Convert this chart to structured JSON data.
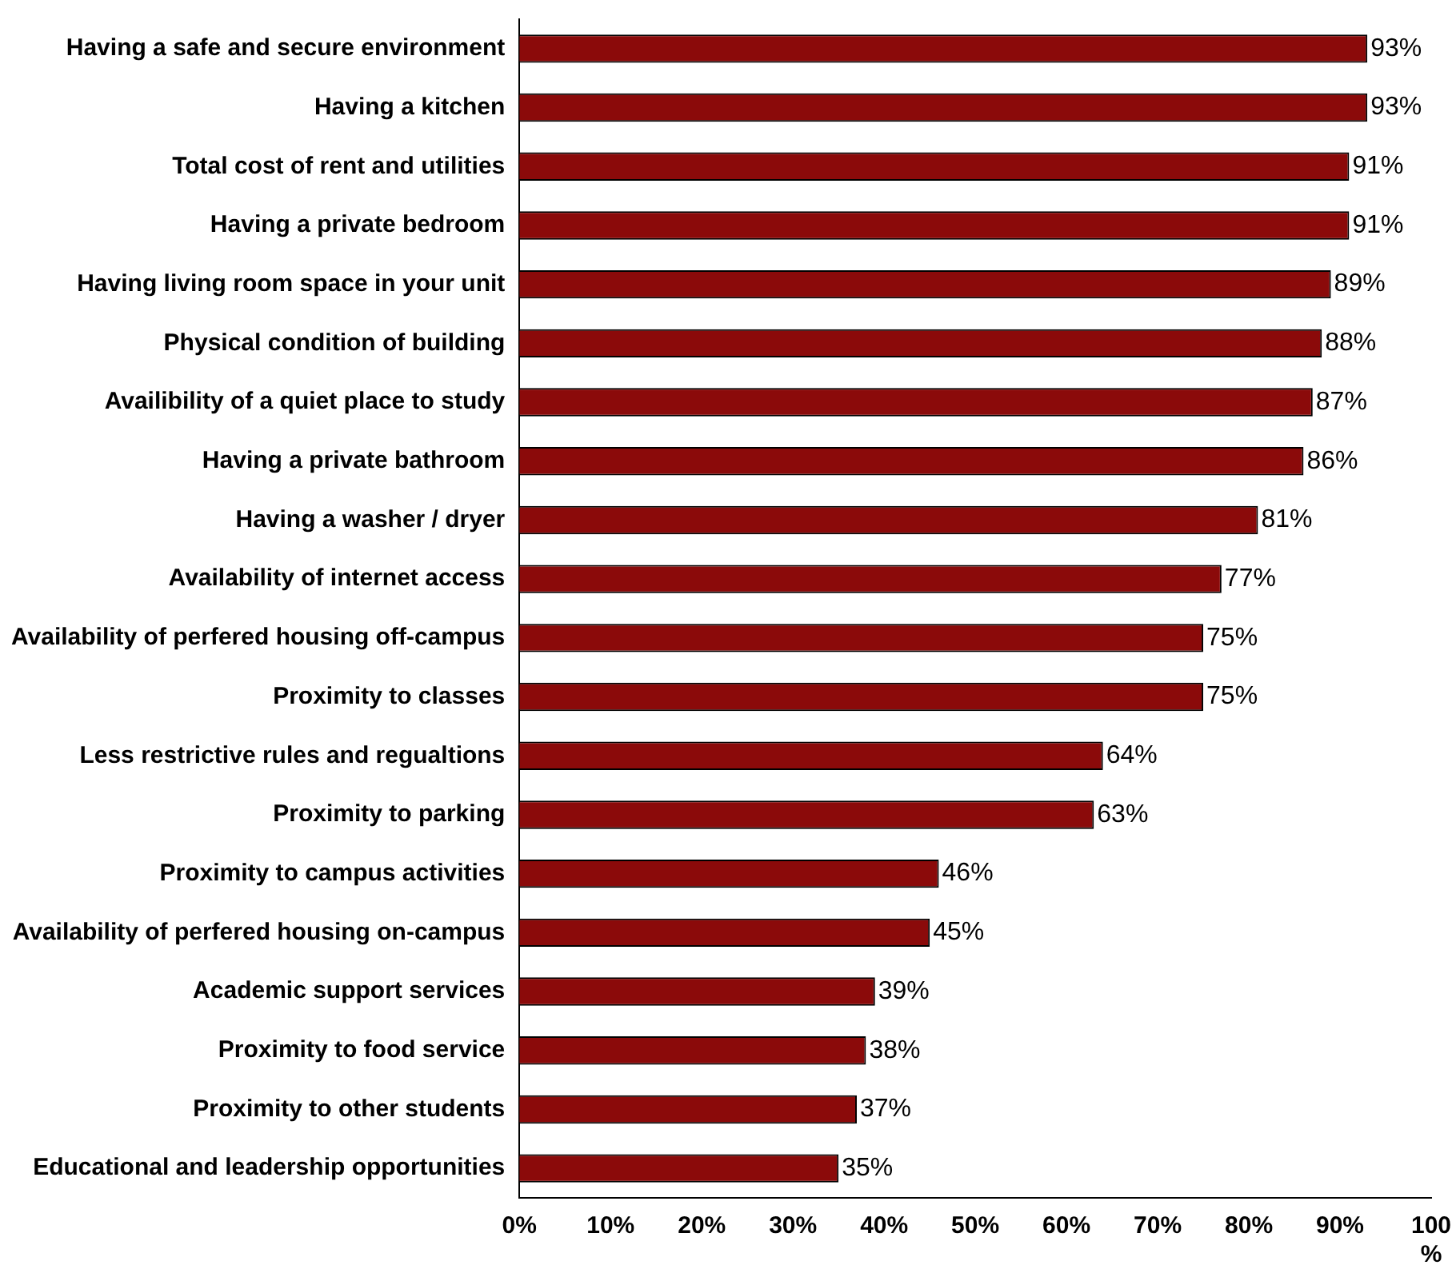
{
  "chart_data": {
    "type": "bar",
    "orientation": "horizontal",
    "categories": [
      "Having a safe and secure environment",
      "Having a kitchen",
      "Total cost of rent and utilities",
      "Having a private bedroom",
      "Having living room space in your unit",
      "Physical condition of building",
      "Availibility of a quiet place to study",
      "Having a private bathroom",
      "Having a washer / dryer",
      "Availability of internet access",
      "Availability of perfered housing off-campus",
      "Proximity to classes",
      "Less restrictive rules and regualtions",
      "Proximity to parking",
      "Proximity to campus activities",
      "Availability of perfered housing on-campus",
      "Academic support services",
      "Proximity to food service",
      "Proximity to other students",
      "Educational and leadership opportunities"
    ],
    "values": [
      93,
      93,
      91,
      91,
      89,
      88,
      87,
      86,
      81,
      77,
      75,
      75,
      64,
      63,
      46,
      45,
      39,
      38,
      37,
      35
    ],
    "value_labels": [
      "93%",
      "93%",
      "91%",
      "91%",
      "89%",
      "88%",
      "87%",
      "86%",
      "81%",
      "77%",
      "75%",
      "75%",
      "64%",
      "63%",
      "46%",
      "45%",
      "39%",
      "38%",
      "37%",
      "35%"
    ],
    "color": "#8b0a0a",
    "xlim": [
      0,
      100
    ],
    "xticks": [
      {
        "value": 0,
        "label": "0%"
      },
      {
        "value": 10,
        "label": "10%"
      },
      {
        "value": 20,
        "label": "20%"
      },
      {
        "value": 30,
        "label": "30%"
      },
      {
        "value": 40,
        "label": "40%"
      },
      {
        "value": 50,
        "label": "50%"
      },
      {
        "value": 60,
        "label": "60%"
      },
      {
        "value": 70,
        "label": "70%"
      },
      {
        "value": 80,
        "label": "80%"
      },
      {
        "value": 90,
        "label": "90%"
      },
      {
        "value": 100,
        "label": "100 %"
      }
    ],
    "grid": false,
    "legend": false
  }
}
